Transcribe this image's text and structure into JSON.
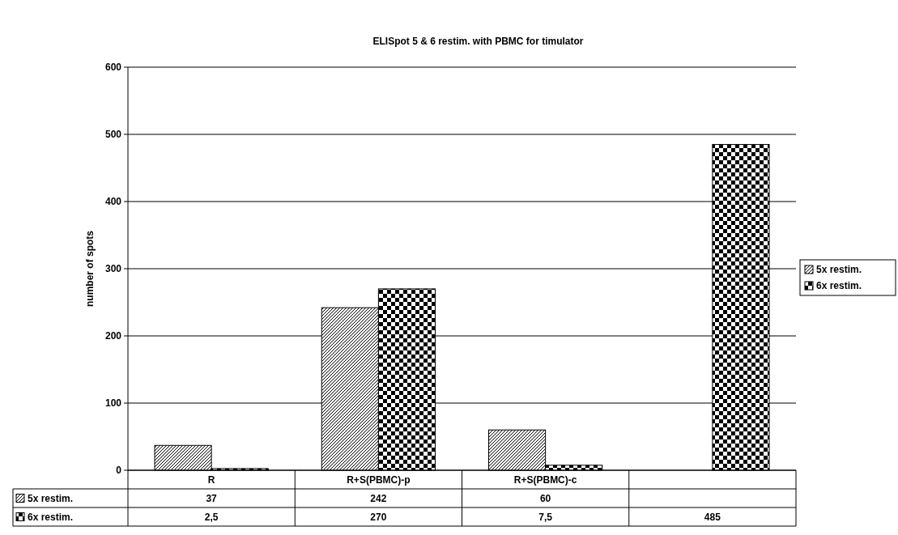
{
  "chart_data": {
    "type": "bar",
    "title": "ELISpot 5 & 6 restim. with PBMC for timulator",
    "ylabel": "number of spots",
    "categories": [
      "R",
      "R+S(PBMC)-p",
      "R+S(PBMC)-c",
      null
    ],
    "series": [
      {
        "name": "5x restim.",
        "color": "#000000",
        "values": [
          37,
          242,
          60,
          null
        ],
        "value_labels": [
          "37",
          "242",
          "60",
          null
        ]
      },
      {
        "name": "6x restim.",
        "color": "#000000",
        "values": [
          2.5,
          270,
          7.5,
          485
        ],
        "value_labels": [
          "2,5",
          "270",
          "7,5",
          "485"
        ]
      }
    ],
    "ylim": [
      0,
      600
    ],
    "yticks": [
      0,
      100,
      200,
      300,
      400,
      500,
      600
    ],
    "grid": "y",
    "legend": "right"
  }
}
